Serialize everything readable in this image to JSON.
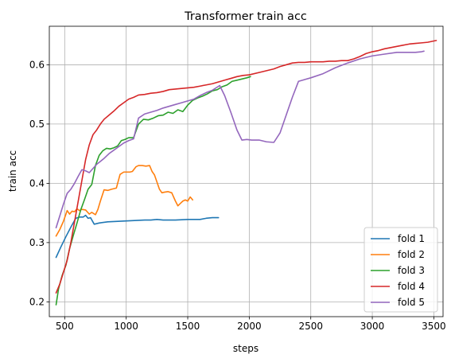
{
  "chart_data": {
    "type": "line",
    "title": "Transformer train acc",
    "xlabel": "steps",
    "ylabel": "train acc",
    "xlim": [
      375,
      3575
    ],
    "ylim": [
      0.175,
      0.665
    ],
    "xticks": [
      500,
      1000,
      1500,
      2000,
      2500,
      3000,
      3500
    ],
    "yticks": [
      0.2,
      0.3,
      0.4,
      0.5,
      0.6
    ],
    "grid": true,
    "legend_position": "lower right",
    "series": [
      {
        "name": "fold 1",
        "color": "#1f77b4",
        "x": [
          430,
          470,
          510,
          550,
          590,
          620,
          650,
          670,
          690,
          710,
          740,
          780,
          850,
          950,
          1050,
          1150,
          1200,
          1250,
          1300,
          1400,
          1500,
          1550,
          1600,
          1650,
          1700,
          1750
        ],
        "y": [
          0.275,
          0.293,
          0.31,
          0.326,
          0.341,
          0.343,
          0.343,
          0.346,
          0.341,
          0.342,
          0.331,
          0.333,
          0.335,
          0.336,
          0.337,
          0.338,
          0.338,
          0.339,
          0.338,
          0.338,
          0.339,
          0.339,
          0.339,
          0.341,
          0.342,
          0.342
        ]
      },
      {
        "name": "fold 2",
        "color": "#ff7f0e",
        "x": [
          430,
          460,
          490,
          520,
          540,
          560,
          580,
          600,
          620,
          640,
          670,
          700,
          720,
          750,
          770,
          790,
          820,
          850,
          880,
          920,
          950,
          980,
          1000,
          1030,
          1050,
          1080,
          1100,
          1130,
          1160,
          1190,
          1210,
          1230,
          1250,
          1270,
          1290,
          1310,
          1340,
          1370,
          1400,
          1420,
          1440,
          1460,
          1480,
          1500,
          1520,
          1540
        ],
        "y": [
          0.311,
          0.322,
          0.336,
          0.354,
          0.348,
          0.353,
          0.352,
          0.357,
          0.354,
          0.356,
          0.355,
          0.348,
          0.351,
          0.347,
          0.356,
          0.37,
          0.389,
          0.388,
          0.39,
          0.392,
          0.415,
          0.419,
          0.419,
          0.419,
          0.42,
          0.428,
          0.43,
          0.43,
          0.429,
          0.43,
          0.42,
          0.414,
          0.402,
          0.39,
          0.384,
          0.385,
          0.386,
          0.384,
          0.37,
          0.362,
          0.366,
          0.37,
          0.372,
          0.37,
          0.377,
          0.372
        ]
      },
      {
        "name": "fold 3",
        "color": "#2ca02c",
        "x": [
          430,
          450,
          480,
          510,
          540,
          570,
          600,
          630,
          660,
          690,
          720,
          750,
          780,
          810,
          840,
          870,
          900,
          930,
          960,
          990,
          1020,
          1060,
          1100,
          1140,
          1180,
          1220,
          1260,
          1300,
          1340,
          1380,
          1420,
          1460,
          1500,
          1540,
          1580,
          1620,
          1660,
          1700,
          1740,
          1780,
          1820,
          1860,
          1900,
          1940,
          1980,
          2010
        ],
        "y": [
          0.195,
          0.222,
          0.245,
          0.262,
          0.29,
          0.312,
          0.333,
          0.355,
          0.372,
          0.39,
          0.398,
          0.43,
          0.447,
          0.455,
          0.459,
          0.458,
          0.46,
          0.463,
          0.472,
          0.474,
          0.477,
          0.477,
          0.5,
          0.508,
          0.507,
          0.51,
          0.514,
          0.515,
          0.52,
          0.518,
          0.524,
          0.521,
          0.532,
          0.54,
          0.544,
          0.547,
          0.551,
          0.556,
          0.558,
          0.563,
          0.566,
          0.572,
          0.574,
          0.576,
          0.578,
          0.58
        ]
      },
      {
        "name": "fold 4",
        "color": "#d62728",
        "x": [
          430,
          460,
          490,
          520,
          550,
          580,
          610,
          640,
          670,
          700,
          730,
          760,
          790,
          820,
          860,
          900,
          940,
          980,
          1020,
          1060,
          1100,
          1150,
          1200,
          1250,
          1300,
          1350,
          1400,
          1450,
          1500,
          1550,
          1600,
          1650,
          1700,
          1750,
          1800,
          1850,
          1900,
          1950,
          2000,
          2100,
          2200,
          2250,
          2300,
          2350,
          2400,
          2450,
          2500,
          2550,
          2600,
          2650,
          2700,
          2750,
          2800,
          2850,
          2900,
          2950,
          3000,
          3050,
          3100,
          3150,
          3200,
          3250,
          3300,
          3350,
          3400,
          3450,
          3520
        ],
        "y": [
          0.215,
          0.23,
          0.25,
          0.27,
          0.3,
          0.335,
          0.37,
          0.405,
          0.44,
          0.465,
          0.482,
          0.49,
          0.5,
          0.508,
          0.515,
          0.522,
          0.53,
          0.536,
          0.542,
          0.545,
          0.549,
          0.55,
          0.552,
          0.553,
          0.555,
          0.558,
          0.559,
          0.56,
          0.561,
          0.562,
          0.564,
          0.566,
          0.568,
          0.571,
          0.574,
          0.577,
          0.58,
          0.582,
          0.583,
          0.588,
          0.593,
          0.597,
          0.6,
          0.603,
          0.604,
          0.604,
          0.605,
          0.605,
          0.605,
          0.606,
          0.606,
          0.607,
          0.607,
          0.61,
          0.614,
          0.619,
          0.622,
          0.624,
          0.627,
          0.629,
          0.631,
          0.633,
          0.635,
          0.636,
          0.637,
          0.638,
          0.641
        ]
      },
      {
        "name": "fold 5",
        "color": "#9467bd",
        "x": [
          430,
          460,
          490,
          520,
          550,
          580,
          610,
          640,
          670,
          700,
          730,
          760,
          790,
          820,
          860,
          900,
          940,
          980,
          1020,
          1060,
          1100,
          1150,
          1200,
          1250,
          1300,
          1350,
          1400,
          1450,
          1500,
          1550,
          1600,
          1650,
          1700,
          1760,
          1800,
          1850,
          1900,
          1940,
          1980,
          2020,
          2080,
          2140,
          2200,
          2250,
          2300,
          2350,
          2400,
          2450,
          2500,
          2600,
          2700,
          2800,
          2900,
          3000,
          3100,
          3200,
          3300,
          3350,
          3400,
          3420
        ],
        "y": [
          0.325,
          0.345,
          0.365,
          0.383,
          0.39,
          0.4,
          0.412,
          0.423,
          0.421,
          0.418,
          0.425,
          0.432,
          0.437,
          0.442,
          0.45,
          0.456,
          0.462,
          0.468,
          0.472,
          0.475,
          0.51,
          0.517,
          0.52,
          0.523,
          0.527,
          0.53,
          0.533,
          0.536,
          0.539,
          0.542,
          0.548,
          0.553,
          0.557,
          0.565,
          0.548,
          0.52,
          0.49,
          0.473,
          0.474,
          0.473,
          0.473,
          0.47,
          0.469,
          0.485,
          0.515,
          0.545,
          0.572,
          0.575,
          0.578,
          0.585,
          0.595,
          0.603,
          0.61,
          0.615,
          0.618,
          0.621,
          0.621,
          0.621,
          0.622,
          0.623
        ]
      }
    ]
  }
}
